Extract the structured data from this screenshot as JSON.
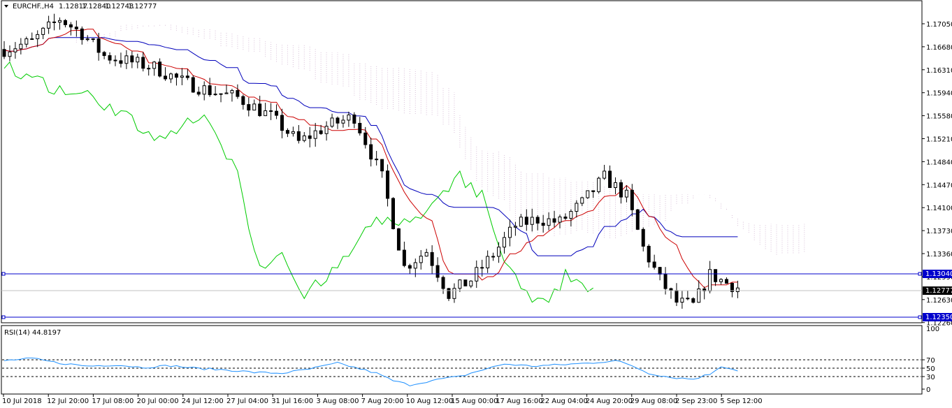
{
  "header": {
    "symbol": "EURCHF.,H4",
    "open": "1.12817",
    "high": "1.12840",
    "low": "1.12743",
    "close": "1.12777"
  },
  "price_axis_ticks": [
    "1.17050",
    "1.16680",
    "1.16310",
    "1.15940",
    "1.15580",
    "1.15210",
    "1.14840",
    "1.14470",
    "1.14100",
    "1.13730",
    "1.13360",
    "1.12990",
    "1.12630",
    "1.12260"
  ],
  "hlines": [
    {
      "label": "1.13040",
      "color": "#0000cc"
    },
    {
      "label": "1.12350",
      "color": "#0000cc"
    }
  ],
  "current_price": {
    "label": "1.12777"
  },
  "rsi": {
    "label": "RSI(14) 44.8197",
    "levels": [
      "100",
      "70",
      "50",
      "30",
      "0"
    ],
    "color": "#1e90ff"
  },
  "time_axis": [
    "10 Jul 2018",
    "12 Jul 20:00",
    "17 Jul 08:00",
    "20 Jul 00:00",
    "24 Jul 12:00",
    "27 Jul 04:00",
    "31 Jul 16:00",
    "3 Aug 08:00",
    "7 Aug 20:00",
    "10 Aug 12:00",
    "15 Aug 00:00",
    "17 Aug 16:00",
    "22 Aug 04:00",
    "24 Aug 20:00",
    "29 Aug 08:00",
    "2 Sep 23:00",
    "5 Sep 12:00"
  ],
  "colors": {
    "tenkan": "#cc0000",
    "kijun": "#0000bb",
    "chikou": "#00cc00",
    "cloud_a": "#f4a460",
    "cloud_b": "#d8bfd8",
    "hline": "#0000cc",
    "candle": "#000000"
  },
  "chart_data": {
    "type": "candlestick",
    "symbol": "EURCHF",
    "timeframe": "H4",
    "ylim": [
      1.1224,
      1.1725
    ],
    "indicators": [
      "Ichimoku Kinko Hyo",
      "RSI(14)"
    ],
    "close_path": [
      [
        0,
        1.165
      ],
      [
        5,
        1.1662
      ],
      [
        10,
        1.1698
      ],
      [
        14,
        1.1675
      ],
      [
        18,
        1.164
      ],
      [
        22,
        1.1632
      ],
      [
        27,
        1.1622
      ],
      [
        32,
        1.16
      ],
      [
        37,
        1.1585
      ],
      [
        42,
        1.1575
      ],
      [
        48,
        1.1545
      ],
      [
        53,
        1.1505
      ],
      [
        58,
        1.153
      ],
      [
        63,
        1.1545
      ],
      [
        68,
        1.145
      ],
      [
        72,
        1.131
      ],
      [
        76,
        1.1335
      ],
      [
        80,
        1.1268
      ],
      [
        84,
        1.129
      ],
      [
        88,
        1.133
      ],
      [
        92,
        1.1375
      ],
      [
        96,
        1.1385
      ],
      [
        100,
        1.138
      ],
      [
        104,
        1.141
      ],
      [
        108,
        1.145
      ],
      [
        112,
        1.142
      ],
      [
        115,
        1.134
      ],
      [
        118,
        1.129
      ],
      [
        121,
        1.1255
      ],
      [
        124,
        1.125
      ],
      [
        127,
        1.1298
      ],
      [
        130,
        1.1285
      ],
      [
        132,
        1.1278
      ]
    ],
    "rsi_path": [
      [
        0,
        68
      ],
      [
        5,
        73
      ],
      [
        10,
        62
      ],
      [
        15,
        55
      ],
      [
        20,
        58
      ],
      [
        25,
        52
      ],
      [
        30,
        56
      ],
      [
        35,
        49
      ],
      [
        40,
        46
      ],
      [
        45,
        40
      ],
      [
        50,
        38
      ],
      [
        55,
        48
      ],
      [
        60,
        62
      ],
      [
        63,
        52
      ],
      [
        67,
        38
      ],
      [
        70,
        20
      ],
      [
        73,
        10
      ],
      [
        76,
        18
      ],
      [
        79,
        25
      ],
      [
        82,
        30
      ],
      [
        85,
        42
      ],
      [
        90,
        60
      ],
      [
        95,
        55
      ],
      [
        100,
        58
      ],
      [
        105,
        62
      ],
      [
        110,
        68
      ],
      [
        113,
        56
      ],
      [
        116,
        38
      ],
      [
        120,
        28
      ],
      [
        124,
        24
      ],
      [
        127,
        36
      ],
      [
        129,
        55
      ],
      [
        131,
        48
      ],
      [
        132,
        44.8
      ]
    ],
    "rsi_last": 44.8197
  }
}
